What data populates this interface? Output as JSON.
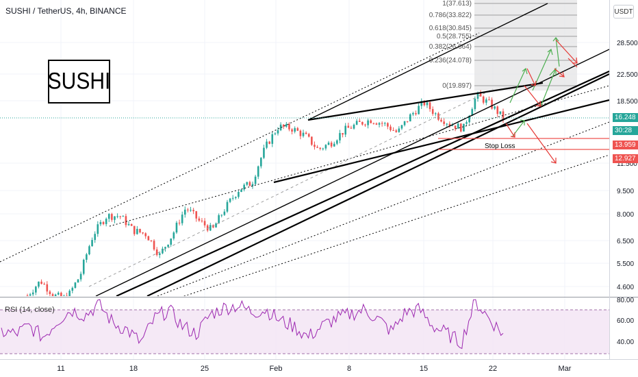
{
  "header": {
    "symbol_title": "SUSHI / TetherUS, 4h, BINANCE",
    "currency_button": "USDT"
  },
  "annotation": {
    "logo_text": "SUSHI",
    "stop_loss_label": "Stop Loss"
  },
  "price_tags": {
    "last_price": "16.248",
    "countdown": "30:28",
    "stop_loss_price": "13.959",
    "target_down_price": "12.927",
    "last_price_color": "#26a69a",
    "countdown_color": "#26a69a",
    "stop_color": "#ef5350"
  },
  "fibonacci": [
    {
      "label": "1(37.613)",
      "value": 37.613
    },
    {
      "label": "0.786(33.822)",
      "value": 33.822
    },
    {
      "label": "0.618(30.845)",
      "value": 30.845
    },
    {
      "label": "0.5(28.755)",
      "value": 28.755
    },
    {
      "label": "0.382(26.664)",
      "value": 26.664
    },
    {
      "label": "0.236(24.078)",
      "value": 24.078
    },
    {
      "label": "0(19.897)",
      "value": 19.897
    }
  ],
  "rsi": {
    "title": "RSI (14, close)",
    "levels": [
      70,
      30
    ],
    "ticks": [
      "80.00",
      "60.00",
      "40.00"
    ]
  },
  "chart_data": {
    "type": "line",
    "title": "SUSHI / TetherUS, 4h, BINANCE",
    "y_axis_ticks": [
      "28.500",
      "22.500",
      "18.500",
      "11.500",
      "9.500",
      "8.000",
      "6.500",
      "5.500",
      "4.600"
    ],
    "x_axis_ticks": [
      "11",
      "18",
      "25",
      "Feb",
      "8",
      "15",
      "22",
      "Mar"
    ],
    "series": [
      {
        "name": "",
        "x": [
          "Jan 8",
          "Jan 10",
          "Jan 11",
          "Jan 13",
          "Jan 15",
          "Jan 16",
          "Jan 17",
          "Jan 18",
          "Jan 19",
          "Jan 21",
          "Jan 22",
          "Jan 24",
          "Jan 25",
          "Jan 26",
          "Jan 28",
          "Jan 29",
          "Jan 31",
          "Feb 1",
          "Feb 2",
          "Feb 4",
          "Feb 5",
          "Feb 6",
          "Feb 7",
          "Feb 8",
          "Feb 10",
          "Feb 11",
          "Feb 12",
          "Feb 13",
          "Feb 14",
          "Feb 15",
          "Feb 16",
          "Feb 17",
          "Feb 18",
          "Feb 19",
          "Feb 20",
          "Feb 21",
          "Feb 22"
        ],
        "values": [
          4.3,
          4.8,
          4.3,
          4.2,
          5.0,
          6.8,
          7.8,
          7.8,
          7.0,
          6.8,
          5.8,
          6.8,
          8.3,
          7.5,
          7.0,
          8.3,
          9.5,
          10.0,
          13.0,
          15.2,
          15.0,
          14.2,
          12.8,
          13.5,
          14.8,
          15.5,
          16.0,
          15.5,
          14.5,
          16.5,
          18.2,
          16.5,
          15.5,
          15.0,
          19.2,
          18.0,
          16.2
        ]
      }
    ],
    "rsi_values": [
      50,
      48,
      55,
      45,
      60,
      70,
      65,
      75,
      58,
      52,
      40,
      62,
      70,
      55,
      48,
      66,
      72,
      74,
      68,
      70,
      60,
      55,
      45,
      55,
      62,
      66,
      70,
      62,
      50,
      68,
      70,
      55,
      48,
      40,
      78,
      62,
      48
    ],
    "log_scale": true,
    "grid": true
  }
}
